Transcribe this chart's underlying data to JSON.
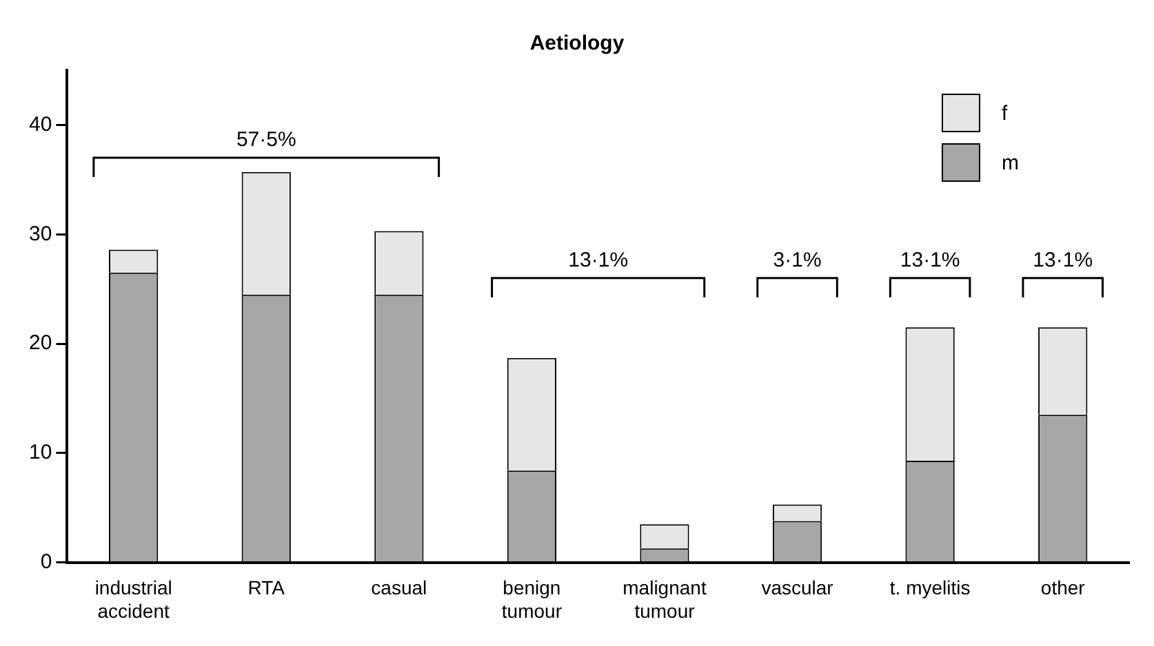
{
  "chart_data": {
    "type": "bar",
    "title": "Aetiology",
    "stacked": true,
    "categories": [
      "industrial\naccident",
      "RTA",
      "casual",
      "benign\ntumour",
      "malignant\ntumour",
      "vascular",
      "t. myelitis",
      "other"
    ],
    "series": [
      {
        "name": "m",
        "color": "#a6a6a6",
        "values": [
          26.5,
          24.5,
          24.5,
          8.4,
          1.3,
          3.8,
          9.3,
          13.5
        ]
      },
      {
        "name": "f",
        "color": "#e6e6e6",
        "values": [
          2.1,
          11.2,
          5.8,
          10.3,
          2.2,
          1.5,
          12.2,
          8
        ]
      }
    ],
    "annotations": [
      "57·5%",
      "13·1%",
      "3·1%",
      "13·1%",
      "13·1%"
    ],
    "ylim": [
      0,
      45
    ],
    "yticks": [
      0,
      10,
      20,
      30,
      40
    ],
    "grid": false,
    "legend": "top right"
  }
}
